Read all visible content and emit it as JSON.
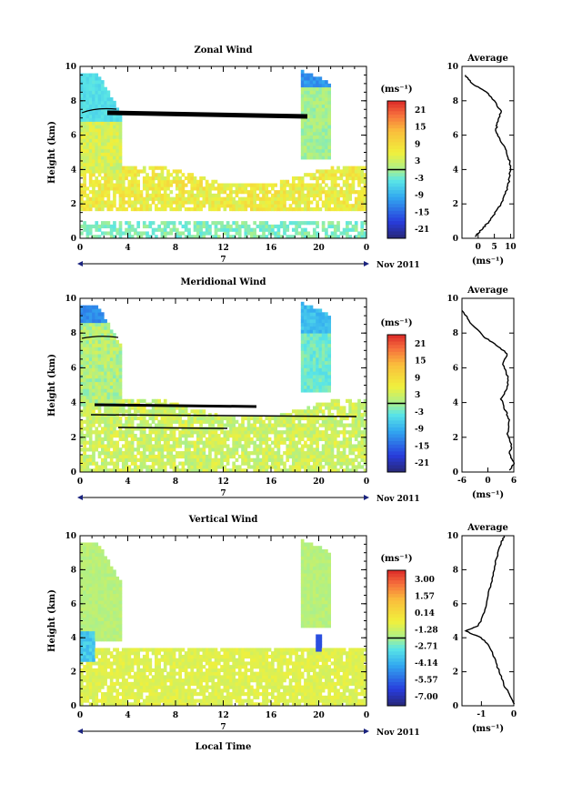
{
  "chart_data": [
    {
      "type": "heatmap",
      "id": "zonal",
      "title": "Zonal Wind",
      "ylabel": "Height (km)",
      "ylim": [
        0,
        10
      ],
      "xlim": [
        0,
        24
      ],
      "xticks": [
        "0",
        "4",
        "8",
        "12",
        "16",
        "20",
        "0"
      ],
      "yticks": [
        "0",
        "2",
        "4",
        "6",
        "8",
        "10"
      ],
      "day_marker": "7",
      "date_label": "Nov 2011",
      "colorbar": {
        "unit": "(ms⁻¹)",
        "ticks": [
          "21",
          "15",
          "9",
          "3",
          "-3",
          "-9",
          "-15",
          "-21"
        ]
      },
      "profile": {
        "title": "Average",
        "xlabel": "(ms⁻¹)",
        "xticks": [
          "0",
          "5",
          "10"
        ],
        "xlim": [
          -5,
          11
        ],
        "yticks": [
          "0",
          "2",
          "4",
          "6",
          "8",
          "10"
        ],
        "points": [
          [
            -1,
            0.1
          ],
          [
            1,
            0.5
          ],
          [
            3,
            0.9
          ],
          [
            5,
            1.4
          ],
          [
            7,
            2.0
          ],
          [
            8.5,
            2.6
          ],
          [
            9.5,
            3.3
          ],
          [
            10,
            4.0
          ],
          [
            9.5,
            4.6
          ],
          [
            8.5,
            5.2
          ],
          [
            6.5,
            5.8
          ],
          [
            5.5,
            6.3
          ],
          [
            6,
            6.8
          ],
          [
            7,
            7.4
          ],
          [
            5,
            8.0
          ],
          [
            2,
            8.6
          ],
          [
            -2,
            9.0
          ],
          [
            -4,
            9.5
          ]
        ]
      }
    },
    {
      "type": "heatmap",
      "id": "meridional",
      "title": "Meridional Wind",
      "ylabel": "Height (km)",
      "ylim": [
        0,
        10
      ],
      "xlim": [
        0,
        24
      ],
      "xticks": [
        "0",
        "4",
        "8",
        "12",
        "16",
        "20",
        "0"
      ],
      "yticks": [
        "0",
        "2",
        "4",
        "6",
        "8",
        "10"
      ],
      "day_marker": "7",
      "date_label": "Nov 2011",
      "colorbar": {
        "unit": "(ms⁻¹)",
        "ticks": [
          "21",
          "15",
          "9",
          "3",
          "-3",
          "-9",
          "-15",
          "-21"
        ]
      },
      "profile": {
        "title": "Average",
        "xlabel": "(ms⁻¹)",
        "xticks": [
          "-6",
          "0",
          "6"
        ],
        "xlim": [
          -6,
          6
        ],
        "yticks": [
          "0",
          "2",
          "4",
          "6",
          "8",
          "10"
        ],
        "points": [
          [
            5,
            0.1
          ],
          [
            6,
            0.5
          ],
          [
            5,
            1.0
          ],
          [
            5.5,
            1.6
          ],
          [
            4.5,
            2.2
          ],
          [
            5,
            3.0
          ],
          [
            4,
            3.6
          ],
          [
            3,
            4.2
          ],
          [
            4.5,
            4.8
          ],
          [
            4.5,
            5.5
          ],
          [
            3.5,
            6.2
          ],
          [
            4.5,
            6.8
          ],
          [
            2,
            7.3
          ],
          [
            -1,
            7.8
          ],
          [
            -4,
            8.6
          ],
          [
            -6,
            9.3
          ]
        ]
      }
    },
    {
      "type": "heatmap",
      "id": "vertical",
      "title": "Vertical Wind",
      "ylabel": "Height (km)",
      "xlabel": "Local Time",
      "ylim": [
        0,
        10
      ],
      "xlim": [
        0,
        24
      ],
      "xticks": [
        "0",
        "4",
        "8",
        "12",
        "16",
        "20",
        "0"
      ],
      "yticks": [
        "0",
        "2",
        "4",
        "6",
        "8",
        "10"
      ],
      "day_marker": "7",
      "date_label": "Nov 2011",
      "colorbar": {
        "unit": "(ms⁻¹)",
        "ticks": [
          "3.00",
          "1.57",
          "0.14",
          "-1.28",
          "-2.71",
          "-4.14",
          "-5.57",
          "-7.00"
        ]
      },
      "profile": {
        "title": "Average",
        "xlabel": "(ms⁻¹)",
        "xticks": [
          "-1",
          "0"
        ],
        "xlim": [
          -1.6,
          0
        ],
        "yticks": [
          "0",
          "2",
          "4",
          "6",
          "8",
          "10"
        ],
        "points": [
          [
            0,
            0.1
          ],
          [
            -0.1,
            0.6
          ],
          [
            -0.3,
            1.2
          ],
          [
            -0.45,
            2.0
          ],
          [
            -0.6,
            2.8
          ],
          [
            -0.75,
            3.5
          ],
          [
            -1.0,
            4.0
          ],
          [
            -1.5,
            4.4
          ],
          [
            -1.1,
            4.7
          ],
          [
            -0.9,
            5.5
          ],
          [
            -0.8,
            6.5
          ],
          [
            -0.65,
            7.5
          ],
          [
            -0.55,
            8.5
          ],
          [
            -0.4,
            9.5
          ],
          [
            -0.3,
            10.0
          ]
        ]
      }
    }
  ]
}
